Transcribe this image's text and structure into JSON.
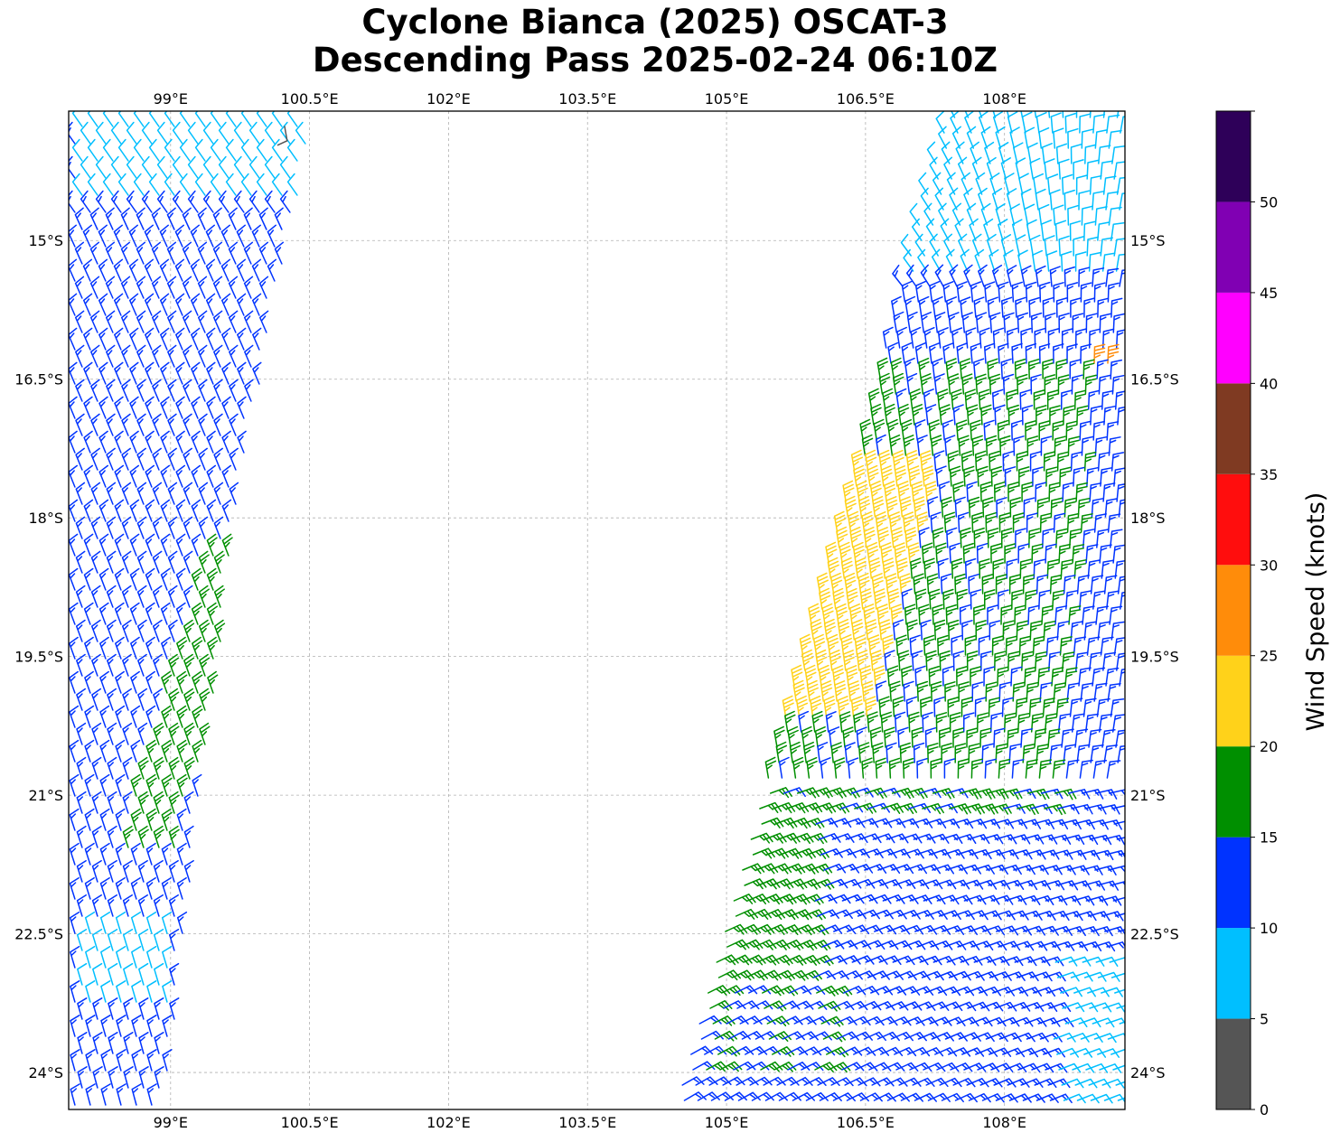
{
  "title": {
    "line1": "Cyclone Bianca (2025) OSCAT-3",
    "line2": "Descending Pass 2025-02-24 06:10Z"
  },
  "map": {
    "lon_range": [
      97.9,
      109.3
    ],
    "lat_range": [
      -24.4,
      -13.6
    ],
    "lon_ticks": [
      {
        "value": 99,
        "label": "99°E"
      },
      {
        "value": 100.5,
        "label": "100.5°E"
      },
      {
        "value": 102,
        "label": "102°E"
      },
      {
        "value": 103.5,
        "label": "103.5°E"
      },
      {
        "value": 105,
        "label": "105°E"
      },
      {
        "value": 106.5,
        "label": "106.5°E"
      },
      {
        "value": 108,
        "label": "108°E"
      }
    ],
    "lat_ticks": [
      {
        "value": -15,
        "label": "15°S"
      },
      {
        "value": -16.5,
        "label": "16.5°S"
      },
      {
        "value": -18,
        "label": "18°S"
      },
      {
        "value": -19.5,
        "label": "19.5°S"
      },
      {
        "value": -21,
        "label": "21°S"
      },
      {
        "value": -22.5,
        "label": "22.5°S"
      },
      {
        "value": -24,
        "label": "24°S"
      }
    ],
    "grid": true,
    "grid_color": "#b0b0b0"
  },
  "colorbar": {
    "title": "Wind Speed (knots)",
    "bins": [
      {
        "from": 0,
        "to": 5,
        "color": "#555555"
      },
      {
        "from": 5,
        "to": 10,
        "color": "#00bfff"
      },
      {
        "from": 10,
        "to": 15,
        "color": "#0033ff"
      },
      {
        "from": 15,
        "to": 20,
        "color": "#008f00"
      },
      {
        "from": 20,
        "to": 25,
        "color": "#ffd21a"
      },
      {
        "from": 25,
        "to": 30,
        "color": "#ff8c0a"
      },
      {
        "from": 30,
        "to": 35,
        "color": "#ff0d0d"
      },
      {
        "from": 35,
        "to": 40,
        "color": "#7f3a22"
      },
      {
        "from": 40,
        "to": 45,
        "color": "#ff00ff"
      },
      {
        "from": 45,
        "to": 50,
        "color": "#8000b3"
      },
      {
        "from": 50,
        "to": 55,
        "color": "#2e0059"
      }
    ],
    "tick_labels": [
      "0",
      "5",
      "10",
      "15",
      "20",
      "25",
      "30",
      "35",
      "40",
      "45",
      "50"
    ]
  }
}
